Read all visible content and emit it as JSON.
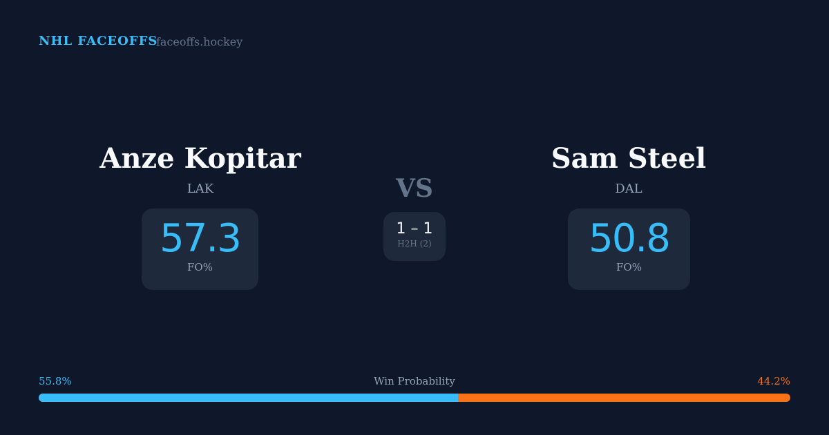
{
  "header": {
    "brand": "NHL FACEOFFS",
    "site": "faceoffs.hockey"
  },
  "left": {
    "name": "Anze Kopitar",
    "team": "LAK",
    "fo_pct": "57.3",
    "fo_label": "FO%"
  },
  "right": {
    "name": "Sam Steel",
    "team": "DAL",
    "fo_pct": "50.8",
    "fo_label": "FO%"
  },
  "middle": {
    "vs": "VS",
    "h2h_record": "1 – 1",
    "h2h_label": "H2H (2)"
  },
  "win_probability": {
    "label": "Win Probability",
    "left": "55.8%",
    "right": "44.2%",
    "left_value": 55.8,
    "left_color": "#38bdf8",
    "right_color": "#f97316"
  }
}
